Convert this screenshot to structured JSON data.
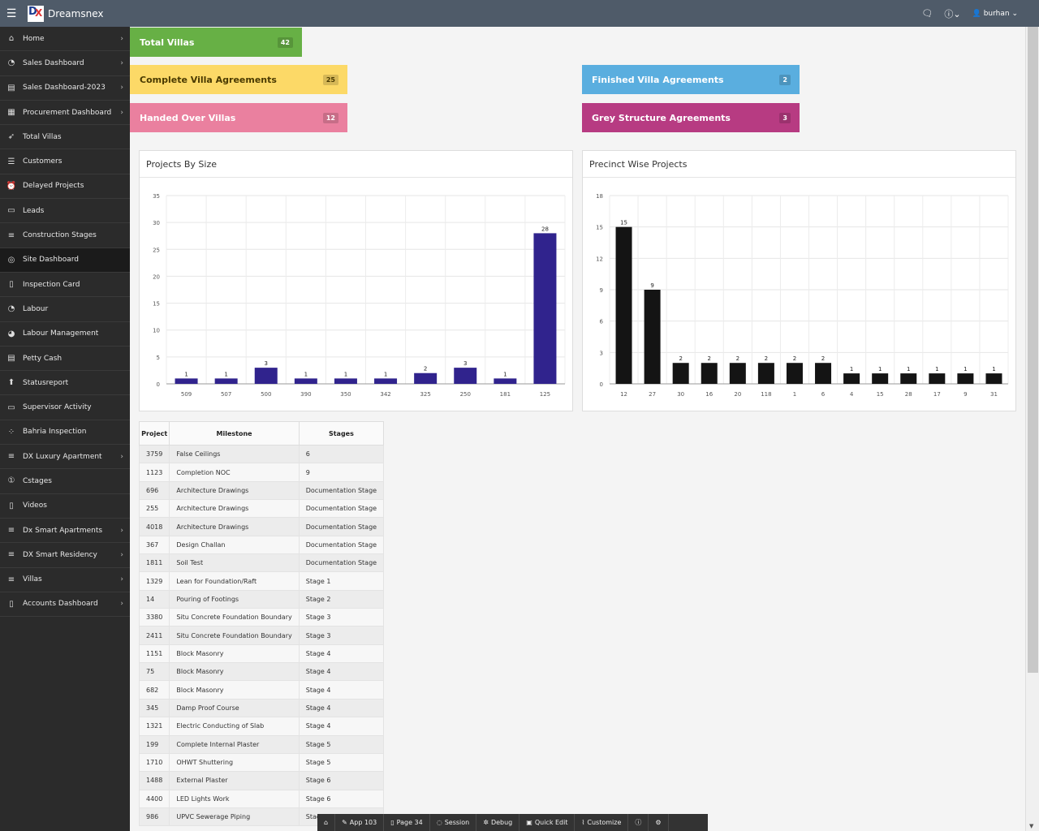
{
  "header": {
    "app_name": "Dreamsnex",
    "user": "burhan",
    "icons": [
      "menu-icon",
      "chat-icon",
      "help-icon",
      "user-icon"
    ]
  },
  "sidebar": {
    "items": [
      {
        "label": "Home",
        "icon": "home-icon",
        "chevron": true
      },
      {
        "label": "Sales Dashboard",
        "icon": "gauge-icon",
        "chevron": true
      },
      {
        "label": "Sales Dashboard-2023",
        "icon": "chart-icon",
        "chevron": true
      },
      {
        "label": "Procurement Dashboard",
        "icon": "grid-icon",
        "chevron": true
      },
      {
        "label": "Total Villas",
        "icon": "rocket-icon",
        "chevron": false
      },
      {
        "label": "Customers",
        "icon": "list-icon",
        "chevron": false
      },
      {
        "label": "Delayed Projects",
        "icon": "alarm-icon",
        "chevron": false
      },
      {
        "label": "Leads",
        "icon": "card-icon",
        "chevron": false
      },
      {
        "label": "Construction Stages",
        "icon": "menu-lines-icon",
        "chevron": false
      },
      {
        "label": "Site Dashboard",
        "icon": "dashboard-icon",
        "chevron": false,
        "active": true
      },
      {
        "label": "Inspection Card",
        "icon": "document-icon",
        "chevron": false
      },
      {
        "label": "Labour",
        "icon": "gauge-icon",
        "chevron": false
      },
      {
        "label": "Labour Management",
        "icon": "palette-icon",
        "chevron": false
      },
      {
        "label": "Petty Cash",
        "icon": "notes-icon",
        "chevron": false
      },
      {
        "label": "Statusreport",
        "icon": "arrow-up-circle-icon",
        "chevron": false
      },
      {
        "label": "Supervisor Activity",
        "icon": "card-icon",
        "chevron": false
      },
      {
        "label": "Bahria Inspection",
        "icon": "dots-grid-icon",
        "chevron": false
      },
      {
        "label": "DX Luxury Apartment",
        "icon": "menu-lines-icon",
        "chevron": true
      },
      {
        "label": "Cstages",
        "icon": "number-one-icon",
        "chevron": false
      },
      {
        "label": "Videos",
        "icon": "file-icon",
        "chevron": false
      },
      {
        "label": "Dx Smart Apartments",
        "icon": "menu-lines-icon",
        "chevron": true
      },
      {
        "label": "DX Smart Residency",
        "icon": "menu-lines-icon",
        "chevron": true
      },
      {
        "label": "Villas",
        "icon": "menu-lines-icon",
        "chevron": true
      },
      {
        "label": "Accounts Dashboard",
        "icon": "file-icon",
        "chevron": true
      }
    ]
  },
  "cards": {
    "total_villas": {
      "label": "Total Villas",
      "count": "42",
      "color": "#67b045"
    },
    "complete_agreements": {
      "label": "Complete Villa Agreements",
      "count": "25",
      "color": "#fcd967"
    },
    "finished_agreements": {
      "label": "Finished Villa Agreements",
      "count": "2",
      "color": "#5aaedf"
    },
    "handed_over": {
      "label": "Handed Over Villas",
      "count": "12",
      "color": "#ea809f"
    },
    "grey_structure": {
      "label": "Grey Structure Agreements",
      "count": "3",
      "color": "#b73b82"
    }
  },
  "chart_data": [
    {
      "type": "bar",
      "title": "Projects By Size",
      "categories": [
        "509",
        "507",
        "500",
        "390",
        "350",
        "342",
        "325",
        "250",
        "181",
        "125"
      ],
      "values": [
        1,
        1,
        3,
        1,
        1,
        1,
        2,
        3,
        1,
        28
      ],
      "ylim": [
        0,
        35
      ],
      "yticks": [
        0,
        5,
        10,
        15,
        20,
        25,
        30,
        35
      ],
      "color": "#30238d",
      "grid": true
    },
    {
      "type": "bar",
      "title": "Precinct Wise Projects",
      "categories": [
        "12",
        "27",
        "30",
        "16",
        "20",
        "118",
        "1",
        "6",
        "4",
        "15",
        "28",
        "17",
        "9",
        "31"
      ],
      "values": [
        15,
        9,
        2,
        2,
        2,
        2,
        2,
        2,
        1,
        1,
        1,
        1,
        1,
        1
      ],
      "ylim": [
        0,
        18
      ],
      "yticks": [
        0,
        3,
        6,
        9,
        12,
        15,
        18
      ],
      "color": "#141414",
      "grid": true
    }
  ],
  "table": {
    "headers": [
      "Project",
      "Milestone",
      "Stages"
    ],
    "rows": [
      [
        "3759",
        "False Ceilings",
        "6"
      ],
      [
        "1123",
        "Completion NOC",
        "9"
      ],
      [
        "696",
        "Architecture Drawings",
        "Documentation Stage"
      ],
      [
        "255",
        "Architecture Drawings",
        "Documentation Stage"
      ],
      [
        "4018",
        "Architecture Drawings",
        "Documentation Stage"
      ],
      [
        "367",
        "Design Challan",
        "Documentation Stage"
      ],
      [
        "1811",
        "Soil Test",
        "Documentation Stage"
      ],
      [
        "1329",
        "Lean for Foundation/Raft",
        "Stage 1"
      ],
      [
        "14",
        "Pouring of Footings",
        "Stage 2"
      ],
      [
        "3380",
        "Situ Concrete Foundation Boundary",
        "Stage 3"
      ],
      [
        "2411",
        "Situ Concrete Foundation Boundary",
        "Stage 3"
      ],
      [
        "1151",
        "Block Masonry",
        "Stage 4"
      ],
      [
        "75",
        "Block Masonry",
        "Stage 4"
      ],
      [
        "682",
        "Block Masonry",
        "Stage 4"
      ],
      [
        "345",
        "Damp Proof Course",
        "Stage 4"
      ],
      [
        "1321",
        "Electric Conducting of Slab",
        "Stage 4"
      ],
      [
        "199",
        "Complete Internal Plaster",
        "Stage 5"
      ],
      [
        "1710",
        "OHWT Shuttering",
        "Stage 5"
      ],
      [
        "1488",
        "External Plaster",
        "Stage 6"
      ],
      [
        "4400",
        "LED Lights Work",
        "Stage 6"
      ],
      [
        "986",
        "UPVC Sewerage Piping",
        "Stage 6"
      ]
    ]
  },
  "devbar": {
    "items": [
      {
        "label": "",
        "icon": "home-icon"
      },
      {
        "label": "App 103",
        "icon": "edit-icon"
      },
      {
        "label": "Page 34",
        "icon": "page-edit-icon"
      },
      {
        "label": "Session",
        "icon": "session-icon"
      },
      {
        "label": "Debug",
        "icon": "bug-icon"
      },
      {
        "label": "Quick Edit",
        "icon": "quick-edit-icon"
      },
      {
        "label": "Customize",
        "icon": "brush-icon"
      },
      {
        "label": "",
        "icon": "info-icon"
      },
      {
        "label": "",
        "icon": "gear-icon"
      }
    ]
  }
}
